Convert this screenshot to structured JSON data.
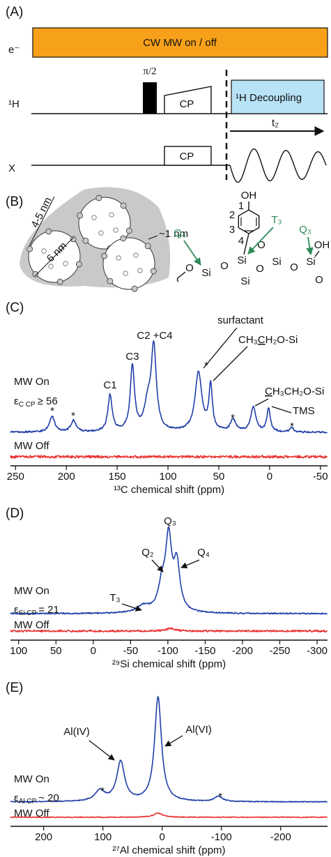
{
  "panel_a": {
    "label": "(A)",
    "electron": "e⁻",
    "mw": "CW MW on / off",
    "pulse": "π/2",
    "h_channel": "¹H",
    "h_cp": "CP",
    "decoupling": "¹H Decoupling",
    "acquisition": "t₂",
    "x_channel": "X",
    "x_cp": "CP"
  },
  "panel_b": {
    "label": "(B)",
    "pore_spacing": "4-5 nm",
    "pore_diameter": "6 nm",
    "wall": "~1 nm",
    "structure": {
      "hydroxyl": "OH",
      "ring_positions": [
        "1",
        "2",
        "3",
        "4"
      ],
      "atoms": [
        "O",
        "Si",
        "O",
        "Si",
        "O",
        "Si",
        "O",
        "Si",
        "OH",
        "O",
        "O",
        "Si"
      ],
      "sites": [
        "Q₄",
        "T₃",
        "Q₃"
      ]
    }
  },
  "chart_data": [
    {
      "type": "spectrum",
      "label": "(C)",
      "xlabel": "¹³C chemical shift (ppm)",
      "xlim": [
        255,
        -57
      ],
      "xticks": [
        250,
        200,
        150,
        100,
        50,
        0,
        -50
      ],
      "enhancement": {
        "symbol": "ε",
        "subscript": "C CP",
        "relation": "≥ 56"
      },
      "series": [
        {
          "name": "MW On",
          "color": "#1f3ea8",
          "peaks": [
            {
              "position": 214,
              "height": 18,
              "width": 3
            },
            {
              "position": 193,
              "height": 13,
              "width": 3
            },
            {
              "position": 157,
              "height": 42,
              "width": 2.5
            },
            {
              "position": 135,
              "height": 75,
              "width": 2.5
            },
            {
              "position": 120,
              "height": 28,
              "width": 4
            },
            {
              "position": 114,
              "height": 95,
              "width": 3
            },
            {
              "position": 70,
              "height": 68,
              "width": 4
            },
            {
              "position": 58,
              "height": 52,
              "width": 2
            },
            {
              "position": 36,
              "height": 14,
              "width": 3
            },
            {
              "position": 16,
              "height": 28,
              "width": 3
            },
            {
              "position": 1,
              "height": 27,
              "width": 2
            },
            {
              "position": -22,
              "height": 5,
              "width": 2
            }
          ]
        },
        {
          "name": "MW Off",
          "color": "#e8312f",
          "peaks": []
        }
      ],
      "annotations": [
        {
          "text": "C1",
          "position": 157
        },
        {
          "text": "C3",
          "position": 135
        },
        {
          "text": "C2 +C4",
          "position": 114
        },
        {
          "text": "surfactant",
          "position": 70
        },
        {
          "text": "*",
          "position": 65
        },
        {
          "segments": [
            "CH₃",
            "C",
            "H₂O-Si"
          ],
          "underlined": 1,
          "position": 58
        },
        {
          "segments": [
            "C",
            "H₃CH₂O-Si"
          ],
          "underlined": 0,
          "position": 16
        },
        {
          "text": "TMS",
          "position": 1
        },
        {
          "text": "*",
          "position": 214
        },
        {
          "text": "*",
          "position": 193
        },
        {
          "text": "*",
          "position": 36
        },
        {
          "text": "*",
          "position": -22
        }
      ]
    },
    {
      "type": "spectrum",
      "label": "(D)",
      "xlabel": "²⁹Si chemical shift (ppm)",
      "xlim": [
        111,
        -314
      ],
      "xticks": [
        100,
        50,
        0,
        -50,
        -100,
        -150,
        -200,
        -250,
        -300
      ],
      "enhancement": {
        "symbol": "ε",
        "subscript": "Si CP",
        "relation": "= 21"
      },
      "series": [
        {
          "name": "MW On",
          "color": "#1f3ea8",
          "peaks": [
            {
              "position": -101,
              "height": 85,
              "width": 5
            },
            {
              "position": -112,
              "height": 55,
              "width": 5
            },
            {
              "position": -92,
              "height": 28,
              "width": 6
            },
            {
              "position": -67,
              "height": 8,
              "width": 10
            }
          ]
        },
        {
          "name": "MW Off",
          "color": "#e8312f",
          "peaks": [
            {
              "position": -103,
              "height": 3,
              "width": 8
            }
          ]
        }
      ],
      "annotations": [
        {
          "text": "Q₃",
          "position": -101
        },
        {
          "text": "Q₂",
          "position": -92
        },
        {
          "text": "Q₄",
          "position": -112
        },
        {
          "text": "T₃",
          "position": -67
        }
      ]
    },
    {
      "type": "spectrum",
      "label": "(E)",
      "xlabel": "²⁷Al chemical shift (ppm)",
      "xlim": [
        256,
        -279
      ],
      "xticks": [
        200,
        100,
        0,
        -100,
        -200
      ],
      "enhancement": {
        "symbol": "ε",
        "subscript": "Al CP",
        "relation": "~ 20"
      },
      "series": [
        {
          "name": "MW On",
          "color": "#1f3ea8",
          "peaks": [
            {
              "position": 7,
              "height": 100,
              "width": 7
            },
            {
              "position": 70,
              "height": 38,
              "width": 8
            },
            {
              "position": 105,
              "height": 10,
              "width": 10
            },
            {
              "position": -95,
              "height": 5,
              "width": 8
            }
          ]
        },
        {
          "name": "MW Off",
          "color": "#e8312f",
          "peaks": [
            {
              "position": 7,
              "height": 4,
              "width": 9
            }
          ]
        }
      ],
      "annotations": [
        {
          "text": "Al(IV)",
          "position": 70
        },
        {
          "text": "Al(VI)",
          "position": 7
        },
        {
          "text": "*",
          "position": 105
        },
        {
          "text": "*",
          "position": -95
        }
      ]
    }
  ]
}
